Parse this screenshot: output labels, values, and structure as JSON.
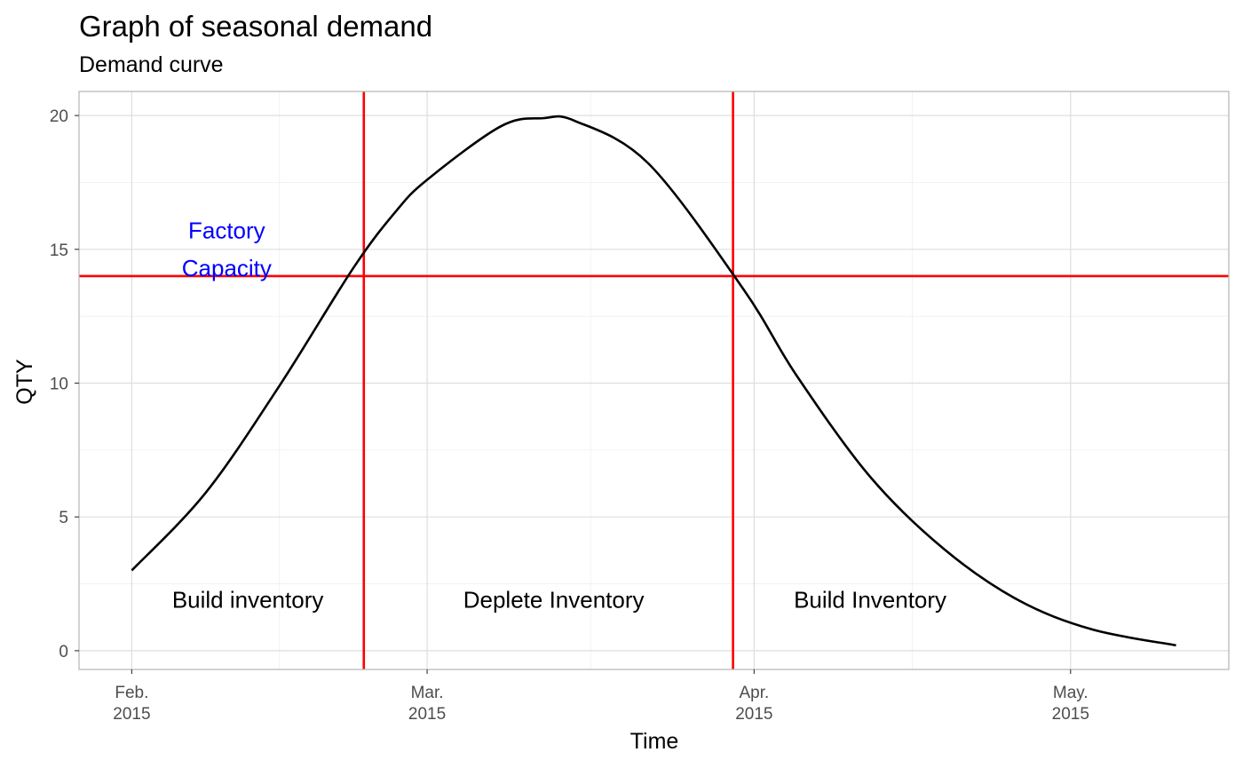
{
  "chart_data": {
    "type": "line",
    "title": "Graph of seasonal demand",
    "subtitle": "Demand curve",
    "xlabel": "Time",
    "ylabel": "QTY",
    "x_axis_type": "date",
    "xlim": [
      "2015-01-27",
      "2015-05-16"
    ],
    "ylim": [
      -0.7,
      20.9
    ],
    "x_ticks": [
      {
        "date": "2015-02-01",
        "label_line1": "Feb.",
        "label_line2": "2015"
      },
      {
        "date": "2015-03-01",
        "label_line1": "Mar.",
        "label_line2": "2015"
      },
      {
        "date": "2015-04-01",
        "label_line1": "Apr.",
        "label_line2": "2015"
      },
      {
        "date": "2015-05-01",
        "label_line1": "May.",
        "label_line2": "2015"
      }
    ],
    "y_ticks": [
      0,
      5,
      10,
      15,
      20
    ],
    "grid": true,
    "series": [
      {
        "color": "#000000",
        "x": [
          "2015-02-01",
          "2015-02-08",
          "2015-02-15",
          "2015-02-22",
          "2015-02-26",
          "2015-03-01",
          "2015-03-08",
          "2015-03-12",
          "2015-03-15",
          "2015-03-22",
          "2015-03-31",
          "2015-04-05",
          "2015-04-12",
          "2015-04-19",
          "2015-04-26",
          "2015-05-03",
          "2015-05-11"
        ],
        "y": [
          3.0,
          5.9,
          9.9,
          14.3,
          16.4,
          17.6,
          19.6,
          19.9,
          19.8,
          18.2,
          13.5,
          10.3,
          6.5,
          3.8,
          1.9,
          0.8,
          0.2
        ]
      }
    ],
    "reference_lines": [
      {
        "orientation": "horizontal",
        "value": 14,
        "color": "#ff0000"
      },
      {
        "orientation": "vertical",
        "value": "2015-02-23",
        "color": "#ff0000"
      },
      {
        "orientation": "vertical",
        "value": "2015-03-30",
        "color": "#ff0000"
      }
    ],
    "annotations": [
      {
        "id": "factory",
        "text": "Factory",
        "x": "2015-02-10",
        "y": 15.7,
        "color": "#0000ff"
      },
      {
        "id": "capacity",
        "text": "Capacity",
        "x": "2015-02-10",
        "y": 14.3,
        "color": "#0000ff"
      },
      {
        "id": "build-1",
        "text": "Build inventory",
        "x": "2015-02-12",
        "y": 1.9,
        "color": "#000000"
      },
      {
        "id": "deplete",
        "text": "Deplete Inventory",
        "x": "2015-03-13",
        "y": 1.9,
        "color": "#000000"
      },
      {
        "id": "build-2",
        "text": "Build Inventory",
        "x": "2015-04-12",
        "y": 1.9,
        "color": "#000000"
      }
    ]
  }
}
